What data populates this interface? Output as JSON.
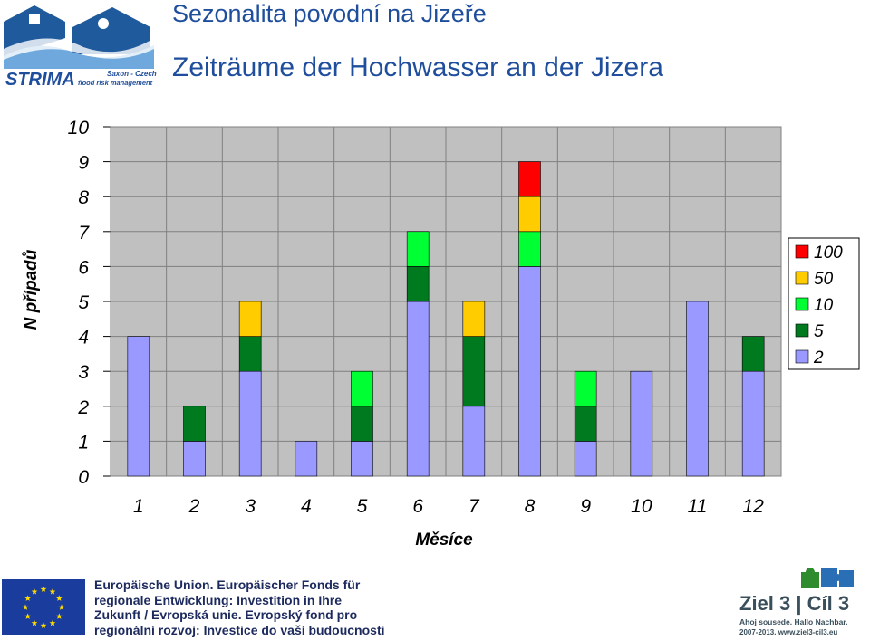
{
  "header": {
    "title_cz": "Sezonalita povodní na Jizeře",
    "title_de": "Zeiträume der Hochwasser an der Jizera",
    "logo_text": "STRIMA",
    "logo_sub1": "Saxon - Czech",
    "logo_sub2": "flood risk management"
  },
  "chart_data": {
    "type": "bar",
    "stacked": true,
    "categories": [
      "1",
      "2",
      "3",
      "4",
      "5",
      "6",
      "7",
      "8",
      "9",
      "10",
      "11",
      "12"
    ],
    "series": [
      {
        "name": "2",
        "color": "#9999ff",
        "values": [
          4,
          1,
          3,
          1,
          1,
          5,
          2,
          6,
          1,
          3,
          5,
          3
        ]
      },
      {
        "name": "5",
        "color": "#007a1f",
        "values": [
          0,
          1,
          1,
          0,
          1,
          1,
          2,
          0,
          1,
          0,
          0,
          1
        ]
      },
      {
        "name": "10",
        "color": "#00ff33",
        "values": [
          0,
          0,
          0,
          0,
          1,
          1,
          0,
          1,
          1,
          0,
          0,
          0
        ]
      },
      {
        "name": "50",
        "color": "#ffcc00",
        "values": [
          0,
          0,
          1,
          0,
          0,
          0,
          1,
          1,
          0,
          0,
          0,
          0
        ]
      },
      {
        "name": "100",
        "color": "#ff0000",
        "values": [
          0,
          0,
          0,
          0,
          0,
          0,
          0,
          1,
          0,
          0,
          0,
          0
        ]
      }
    ],
    "xlabel": "Měsíce",
    "ylabel": "N případů",
    "ylim": [
      0,
      10
    ],
    "yticks": [
      "0",
      "1",
      "2",
      "3",
      "4",
      "5",
      "6",
      "7",
      "8",
      "9",
      "10"
    ],
    "grid": true,
    "legend_position": "right"
  },
  "footer": {
    "eu_lines": [
      "Europäische Union. Europäischer Fonds für",
      "regionale Entwicklung: Investition in Ihre",
      "Zukunft / Evropská unie. Evropský fond pro",
      "regionální rozvoj: Investice do vaší budoucnosti"
    ],
    "ziel_title": "Ziel 3 | Cíl 3",
    "ziel_slogan": "Ahoj sousede. Hallo Nachbar.",
    "ziel_years": "2007-2013. www.ziel3-cil3.eu"
  },
  "colors": {
    "title": "#1f4e9c",
    "plot_bg": "#c0c0c0",
    "grid": "#808080"
  }
}
